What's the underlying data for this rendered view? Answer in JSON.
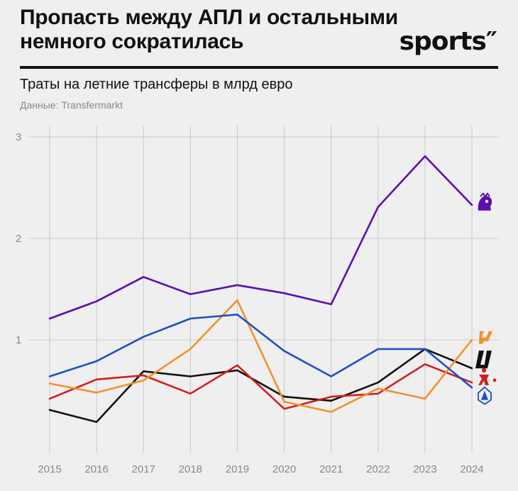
{
  "header": {
    "title_line1": "Пропасть между АПЛ и остальными",
    "title_line2": "немного сократилась",
    "logo": "sports″",
    "subtitle": "Траты на летние трансферы в млрд евро",
    "source": "Данные: Transfermarkt"
  },
  "colors": {
    "background": "#efefef",
    "grid": "#c8c8c8",
    "axis_text": "#888888"
  },
  "chart_data": {
    "type": "line",
    "title": "Траты на летние трансферы в млрд евро",
    "xlabel": "",
    "ylabel": "",
    "x": [
      "2015",
      "2016",
      "2017",
      "2018",
      "2019",
      "2020",
      "2021",
      "2022",
      "2023",
      "2024"
    ],
    "yticks": [
      "1",
      "2",
      "3"
    ],
    "ylim": [
      0,
      3
    ],
    "grid": true,
    "legend": "icons at line ends (right)",
    "series": [
      {
        "name": "Premier League",
        "color": "#5b0fb0",
        "icon": "premier-league-lion-icon",
        "values": [
          1.21,
          1.38,
          1.62,
          1.45,
          1.54,
          1.46,
          1.35,
          2.31,
          2.81,
          2.33
        ]
      },
      {
        "name": "Serie A",
        "color": "#1f4fc4",
        "icon": "serie-a-icon",
        "values": [
          0.64,
          0.79,
          1.03,
          1.21,
          1.25,
          0.89,
          0.64,
          0.91,
          0.91,
          0.53
        ]
      },
      {
        "name": "LaLiga",
        "color": "#f0922e",
        "icon": "laliga-icon",
        "values": [
          0.57,
          0.48,
          0.6,
          0.91,
          1.39,
          0.39,
          0.29,
          0.52,
          0.42,
          1.0
        ]
      },
      {
        "name": "Bundesliga",
        "color": "#d11f1f",
        "icon": "bundesliga-icon",
        "values": [
          0.42,
          0.61,
          0.65,
          0.47,
          0.75,
          0.32,
          0.44,
          0.47,
          0.76,
          0.58
        ]
      },
      {
        "name": "Ligue 1",
        "color": "#111111",
        "icon": "ligue-1-icon",
        "values": [
          0.31,
          0.19,
          0.69,
          0.64,
          0.7,
          0.44,
          0.4,
          0.58,
          0.91,
          0.72
        ]
      }
    ]
  }
}
